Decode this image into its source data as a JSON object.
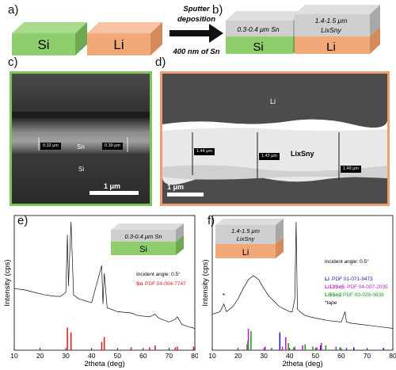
{
  "panels": {
    "a": {
      "label": "a)",
      "blocks": [
        {
          "text": "Si",
          "color": "#8fce6e"
        },
        {
          "text": "Li",
          "color": "#f2a878"
        }
      ],
      "arrow_top": "Sputter",
      "arrow_top2": "deposition",
      "arrow_bottom": "400 nm of Sn"
    },
    "b": {
      "label": "b)",
      "blocks": [
        {
          "base": "Si",
          "base_color": "#8fce6e",
          "layer_text": "0.3-0.4 μm Sn"
        },
        {
          "base": "Li",
          "base_color": "#f2a878",
          "layer_line1": "1.4-1.5 μm",
          "layer_line2": "LixSny"
        }
      ]
    },
    "c": {
      "label": "c)",
      "tags": [
        "0.32 μm",
        "0.39 μm"
      ],
      "labels": {
        "sn": "Sn",
        "si": "Si"
      },
      "scale": "1 μm",
      "border": "#7ec35a"
    },
    "d": {
      "label": "d)",
      "tags": [
        "1.44 μm",
        "1.42 μm",
        "1.49 μm"
      ],
      "labels": {
        "li": "Li",
        "alloy": "LixSny"
      },
      "scale": "1 μm",
      "border": "#e8a070"
    }
  },
  "chart_data": [
    {
      "panel": "e)",
      "type": "line",
      "xlabel": "2theta (deg)",
      "ylabel": "Intensity (cps)",
      "xlim": [
        10,
        80
      ],
      "xticks": [
        10,
        20,
        30,
        40,
        50,
        60,
        70,
        80
      ],
      "inset": {
        "layer": "0.3-0.4 μm Sn",
        "base": "Si",
        "base_color": "#8fce6e"
      },
      "annotations": [
        "Incident angle: 0.5°"
      ],
      "legend": [
        {
          "name": "Sn",
          "pdf": "PDF 04-004-7747",
          "color": "#e02020"
        }
      ],
      "reference_sticks": {
        "Sn": {
          "x": [
            30.6,
            32.0,
            43.9,
            44.9,
            55.3,
            62.5,
            64.6,
            72.4,
            73.2,
            79.5
          ],
          "height": [
            0.95,
            0.75,
            0.35,
            0.55,
            0.12,
            0.12,
            0.2,
            0.12,
            0.15,
            0.15
          ]
        }
      },
      "pattern": {
        "x": [
          10,
          14,
          18,
          22,
          26,
          28,
          30,
          30.6,
          31,
          32,
          33,
          35,
          40,
          43.9,
          44.4,
          44.9,
          46,
          50,
          55.3,
          58,
          62.5,
          64.6,
          66,
          70,
          72.4,
          73.2,
          75,
          78,
          80
        ],
        "y": [
          0.48,
          0.47,
          0.45,
          0.43,
          0.42,
          0.42,
          0.45,
          0.9,
          0.5,
          1.0,
          0.43,
          0.4,
          0.37,
          0.66,
          0.36,
          0.6,
          0.33,
          0.3,
          0.29,
          0.27,
          0.26,
          0.28,
          0.25,
          0.22,
          0.24,
          0.26,
          0.2,
          0.18,
          0.17
        ]
      }
    },
    {
      "panel": "f)",
      "type": "line",
      "xlabel": "2theta (deg)",
      "ylabel": "Intensity (cps)",
      "xlim": [
        10,
        80
      ],
      "xticks": [
        10,
        20,
        30,
        40,
        50,
        60,
        70,
        80
      ],
      "inset": {
        "layer1": "1.4-1.5 μm",
        "layer2": "LixSny",
        "base": "Li",
        "base_color": "#f2a878"
      },
      "annotations": [
        "Incident angle: 0.5°",
        "*tape",
        "*"
      ],
      "legend": [
        {
          "name": "Li",
          "pdf": "PDF 01-071-9473",
          "color": "#2020c0"
        },
        {
          "name": "Li13Sn5",
          "pdf": "PDF 04-007-2035",
          "color": "#c020c0"
        },
        {
          "name": "Li5Sn2",
          "pdf": "PDF 00-029-0839",
          "color": "#20a020"
        }
      ],
      "reference_sticks": {
        "Li": {
          "x": [
            36.2,
            52.0,
            64.9,
            76.4
          ],
          "height": [
            0.75,
            0.2,
            0.12,
            0.1
          ]
        },
        "Li13Sn5": {
          "x": [
            23.5,
            24.0,
            30.5,
            37.2,
            38.5,
            42.0,
            45.0,
            50.5,
            52.3,
            58.0,
            62.0
          ],
          "height": [
            0.25,
            0.9,
            0.15,
            0.15,
            0.55,
            0.15,
            0.2,
            0.12,
            0.3,
            0.15,
            0.1
          ]
        },
        "Li5Sn2": {
          "x": [
            23.8,
            25.0,
            33.0,
            39.5,
            41.5,
            46.0,
            49.0,
            54.0,
            59.5
          ],
          "height": [
            0.4,
            0.8,
            0.1,
            0.3,
            0.1,
            0.25,
            0.15,
            0.2,
            0.12
          ]
        }
      },
      "pattern": {
        "x": [
          10,
          13,
          14.5,
          15.5,
          18,
          20,
          22,
          24,
          26,
          28,
          30,
          32,
          34,
          36,
          38,
          40,
          41,
          42,
          42.5,
          43,
          44,
          46,
          50,
          55,
          60,
          61.5,
          62,
          64,
          68,
          72,
          76,
          80
        ],
        "y": [
          0.28,
          0.3,
          0.36,
          0.3,
          0.34,
          0.4,
          0.48,
          0.55,
          0.58,
          0.55,
          0.48,
          0.42,
          0.38,
          0.34,
          0.32,
          0.3,
          0.3,
          0.4,
          1.0,
          0.32,
          0.3,
          0.27,
          0.25,
          0.23,
          0.22,
          0.3,
          0.22,
          0.21,
          0.2,
          0.19,
          0.18,
          0.17
        ]
      }
    }
  ]
}
